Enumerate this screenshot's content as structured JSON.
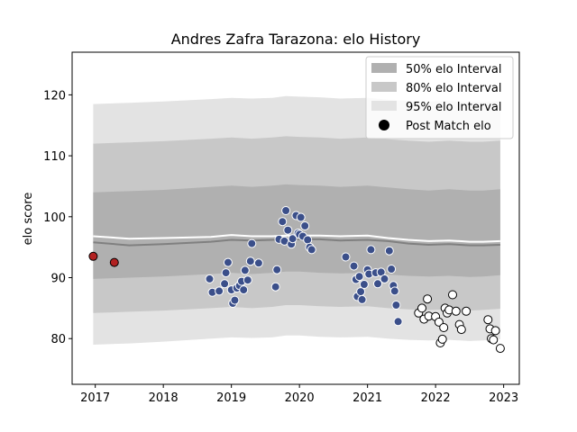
{
  "chart_data": {
    "type": "scatter",
    "title": "Andres Zafra Tarazona: elo History",
    "xlabel": "",
    "ylabel": "elo score",
    "xlim": [
      2016.66,
      2023.23
    ],
    "ylim": [
      72.5,
      127.0
    ],
    "x_ticks": [
      2017,
      2018,
      2019,
      2020,
      2021,
      2022,
      2023
    ],
    "y_ticks": [
      80,
      90,
      100,
      110,
      120
    ],
    "grid": false,
    "legend_position": "top-right",
    "legend": [
      {
        "label": "50% elo Interval",
        "kind": "band",
        "color": "#b0b0b0"
      },
      {
        "label": "80% elo Interval",
        "kind": "band",
        "color": "#c8c8c8"
      },
      {
        "label": "95% elo Interval",
        "kind": "band",
        "color": "#e3e3e3"
      },
      {
        "label": "Post Match elo",
        "kind": "marker",
        "color": "#000000"
      }
    ],
    "colors": {
      "band_50": "#b0b0b0",
      "band_80": "#c8c8c8",
      "band_95": "#e3e3e3",
      "mean_line": "#808080",
      "upper_line": "#ffffff",
      "points_early": "#b22222",
      "points_mid": "#3b4f8a",
      "points_late": "#ffffff"
    },
    "bands": {
      "x": [
        2016.97,
        2017.5,
        2018.0,
        2018.7,
        2019.0,
        2019.3,
        2019.6,
        2019.8,
        2020.0,
        2020.3,
        2020.6,
        2021.0,
        2021.3,
        2021.6,
        2021.9,
        2022.2,
        2022.5,
        2022.7,
        2022.95
      ],
      "p95": [
        [
          79.0,
          118.5
        ],
        [
          79.2,
          118.7
        ],
        [
          79.5,
          118.9
        ],
        [
          80.0,
          119.3
        ],
        [
          80.2,
          119.5
        ],
        [
          80.1,
          119.4
        ],
        [
          80.2,
          119.5
        ],
        [
          80.5,
          119.8
        ],
        [
          80.5,
          119.7
        ],
        [
          80.3,
          119.6
        ],
        [
          80.2,
          119.4
        ],
        [
          80.3,
          119.5
        ],
        [
          80.0,
          119.2
        ],
        [
          79.8,
          119.0
        ],
        [
          79.7,
          118.9
        ],
        [
          79.8,
          119.0
        ],
        [
          79.6,
          118.8
        ],
        [
          79.7,
          118.8
        ],
        [
          79.9,
          119.0
        ]
      ],
      "p80": [
        [
          84.2,
          112.0
        ],
        [
          84.4,
          112.2
        ],
        [
          84.6,
          112.4
        ],
        [
          85.0,
          112.8
        ],
        [
          85.2,
          113.0
        ],
        [
          85.0,
          112.8
        ],
        [
          85.2,
          113.0
        ],
        [
          85.5,
          113.2
        ],
        [
          85.5,
          113.1
        ],
        [
          85.3,
          113.0
        ],
        [
          85.2,
          112.8
        ],
        [
          85.3,
          113.0
        ],
        [
          85.0,
          112.7
        ],
        [
          84.8,
          112.5
        ],
        [
          84.7,
          112.3
        ],
        [
          84.8,
          112.5
        ],
        [
          84.6,
          112.3
        ],
        [
          84.7,
          112.3
        ],
        [
          84.9,
          112.5
        ]
      ],
      "p50": [
        [
          89.8,
          104.0
        ],
        [
          90.0,
          104.2
        ],
        [
          90.2,
          104.4
        ],
        [
          90.6,
          104.9
        ],
        [
          90.8,
          105.1
        ],
        [
          90.6,
          104.9
        ],
        [
          90.8,
          105.1
        ],
        [
          91.0,
          105.3
        ],
        [
          91.0,
          105.2
        ],
        [
          90.8,
          105.1
        ],
        [
          90.7,
          104.9
        ],
        [
          90.8,
          105.1
        ],
        [
          90.5,
          104.8
        ],
        [
          90.3,
          104.5
        ],
        [
          90.2,
          104.3
        ],
        [
          90.3,
          104.5
        ],
        [
          90.1,
          104.3
        ],
        [
          90.2,
          104.3
        ],
        [
          90.4,
          104.5
        ]
      ]
    },
    "mean_line": {
      "x": [
        2016.97,
        2017.5,
        2018.0,
        2018.7,
        2019.0,
        2019.3,
        2019.6,
        2019.8,
        2020.0,
        2020.3,
        2020.6,
        2021.0,
        2021.3,
        2021.6,
        2021.9,
        2022.2,
        2022.5,
        2022.7,
        2022.95
      ],
      "y": [
        95.8,
        95.3,
        95.5,
        95.9,
        96.2,
        96.1,
        96.2,
        96.3,
        96.3,
        96.3,
        96.1,
        96.2,
        96.0,
        95.6,
        95.4,
        95.5,
        95.3,
        95.3,
        95.4
      ]
    },
    "upper_line": {
      "x": [
        2016.97,
        2017.5,
        2018.0,
        2018.7,
        2019.0,
        2019.3,
        2019.6,
        2019.8,
        2020.0,
        2020.3,
        2020.6,
        2021.0,
        2021.3,
        2021.6,
        2021.9,
        2022.2,
        2022.5,
        2022.7,
        2022.95
      ],
      "y": [
        96.8,
        96.4,
        96.5,
        96.7,
        97.0,
        96.8,
        96.8,
        96.9,
        96.9,
        96.9,
        96.8,
        96.9,
        96.5,
        96.2,
        96.0,
        96.1,
        95.9,
        95.9,
        96.0
      ]
    },
    "series": [
      {
        "points": [
          [
            2016.97,
            93.5
          ],
          [
            2017.28,
            92.5
          ]
        ]
      },
      {
        "points": [
          [
            2018.68,
            89.8
          ],
          [
            2018.72,
            87.6
          ],
          [
            2018.82,
            87.8
          ],
          [
            2018.9,
            89.0
          ],
          [
            2018.92,
            90.8
          ],
          [
            2018.95,
            92.5
          ],
          [
            2019.0,
            88.0
          ],
          [
            2019.02,
            85.8
          ],
          [
            2019.05,
            86.3
          ],
          [
            2019.08,
            88.3
          ],
          [
            2019.12,
            88.7
          ],
          [
            2019.15,
            89.4
          ],
          [
            2019.18,
            88.0
          ],
          [
            2019.2,
            91.2
          ],
          [
            2019.24,
            89.6
          ],
          [
            2019.28,
            92.7
          ],
          [
            2019.3,
            95.6
          ],
          [
            2019.4,
            92.4
          ],
          [
            2019.65,
            88.5
          ],
          [
            2019.67,
            91.3
          ],
          [
            2019.7,
            96.3
          ],
          [
            2019.75,
            99.2
          ],
          [
            2019.78,
            96.0
          ],
          [
            2019.8,
            101.0
          ],
          [
            2019.83,
            97.8
          ],
          [
            2019.88,
            95.5
          ],
          [
            2019.9,
            96.4
          ],
          [
            2019.95,
            100.2
          ],
          [
            2019.98,
            97.3
          ],
          [
            2020.0,
            97.1
          ],
          [
            2020.02,
            99.9
          ],
          [
            2020.05,
            96.8
          ],
          [
            2020.08,
            98.5
          ],
          [
            2020.12,
            96.2
          ],
          [
            2020.15,
            95.0
          ],
          [
            2020.18,
            94.6
          ],
          [
            2020.68,
            93.4
          ],
          [
            2020.8,
            91.9
          ],
          [
            2020.83,
            89.7
          ],
          [
            2020.85,
            86.9
          ],
          [
            2020.88,
            90.2
          ],
          [
            2020.9,
            87.7
          ],
          [
            2020.92,
            86.4
          ],
          [
            2020.95,
            88.9
          ],
          [
            2021.0,
            91.3
          ],
          [
            2021.02,
            90.6
          ],
          [
            2021.05,
            94.6
          ],
          [
            2021.12,
            90.8
          ],
          [
            2021.15,
            89.0
          ],
          [
            2021.2,
            90.9
          ],
          [
            2021.25,
            89.8
          ],
          [
            2021.32,
            94.4
          ],
          [
            2021.35,
            91.4
          ],
          [
            2021.38,
            88.7
          ],
          [
            2021.4,
            87.8
          ],
          [
            2021.42,
            85.5
          ],
          [
            2021.45,
            82.8
          ]
        ]
      },
      {
        "points": [
          [
            2021.75,
            84.2
          ],
          [
            2021.8,
            85.0
          ],
          [
            2021.83,
            83.2
          ],
          [
            2021.88,
            86.5
          ],
          [
            2021.9,
            83.7
          ],
          [
            2022.0,
            83.6
          ],
          [
            2022.05,
            82.7
          ],
          [
            2022.07,
            79.3
          ],
          [
            2022.1,
            79.9
          ],
          [
            2022.12,
            81.8
          ],
          [
            2022.14,
            85.0
          ],
          [
            2022.17,
            84.2
          ],
          [
            2022.2,
            84.7
          ],
          [
            2022.25,
            87.2
          ],
          [
            2022.3,
            84.5
          ],
          [
            2022.35,
            82.3
          ],
          [
            2022.38,
            81.5
          ],
          [
            2022.45,
            84.5
          ],
          [
            2022.77,
            83.1
          ],
          [
            2022.8,
            81.6
          ],
          [
            2022.82,
            80.0
          ],
          [
            2022.85,
            79.8
          ],
          [
            2022.88,
            81.3
          ],
          [
            2022.95,
            78.4
          ]
        ]
      }
    ]
  }
}
